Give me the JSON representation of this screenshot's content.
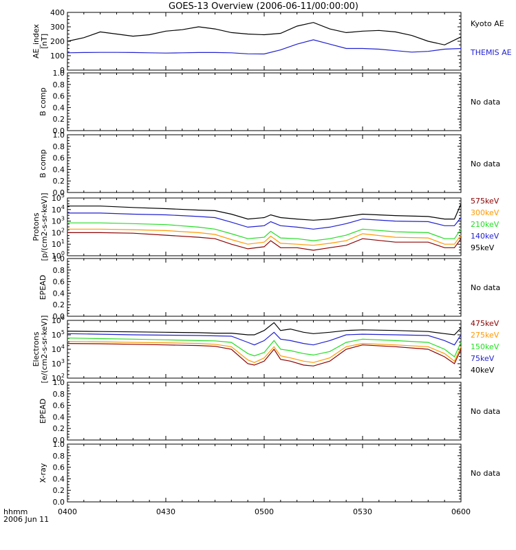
{
  "title": "GOES-13 Overview (2006-06-11/00:00:00)",
  "time_axis": {
    "start": "0400",
    "end": "0600",
    "ticks": [
      "0400",
      "0430",
      "0500",
      "0530",
      "0600"
    ],
    "units_label": "hhmm",
    "date_label": "2006 Jun 11"
  },
  "chart_data": [
    {
      "type": "line",
      "ylabel": "AE_index",
      "ylabel_units": "[nT]",
      "ylim": [
        0,
        400
      ],
      "yticks": [
        "0",
        "100",
        "200",
        "300",
        "400"
      ],
      "x": [
        "04:00",
        "04:05",
        "04:10",
        "04:15",
        "04:20",
        "04:25",
        "04:30",
        "04:35",
        "04:40",
        "04:45",
        "04:50",
        "04:55",
        "05:00",
        "05:05",
        "05:10",
        "05:15",
        "05:20",
        "05:25",
        "05:30",
        "05:35",
        "05:40",
        "05:45",
        "05:50",
        "05:55",
        "06:00"
      ],
      "series": [
        {
          "name": "Kyoto AE",
          "color": "#000000",
          "values": [
            200,
            225,
            265,
            250,
            235,
            245,
            270,
            280,
            300,
            285,
            260,
            250,
            245,
            255,
            305,
            330,
            285,
            260,
            270,
            275,
            265,
            240,
            200,
            175,
            230
          ]
        },
        {
          "name": "THEMIS AE",
          "color": "#1f1fd0",
          "values": [
            120,
            122,
            123,
            123,
            122,
            120,
            118,
            120,
            122,
            122,
            120,
            113,
            112,
            140,
            180,
            210,
            180,
            150,
            150,
            145,
            135,
            125,
            130,
            145,
            150
          ]
        }
      ]
    },
    {
      "type": "line",
      "ylabel": "B comp",
      "ylim": [
        0,
        1
      ],
      "yticks": [
        "0.0",
        "0.2",
        "0.4",
        "0.6",
        "0.8",
        "1.0"
      ],
      "series": [],
      "status": "No data"
    },
    {
      "type": "line",
      "ylabel": "B comp",
      "ylim": [
        0,
        1
      ],
      "yticks": [
        "0.0",
        "0.2",
        "0.4",
        "0.6",
        "0.8",
        "1.0"
      ],
      "series": [],
      "status": "No data"
    },
    {
      "type": "line",
      "ylabel": "Protons",
      "ylabel_units": "[p/(cm2-s-sr-keV)]",
      "yscale": "log",
      "ylim": [
        1,
        100000
      ],
      "yticks": [
        "10^0",
        "10^1",
        "10^2",
        "10^3",
        "10^4",
        "10^5"
      ],
      "x": [
        "04:00",
        "04:10",
        "04:20",
        "04:30",
        "04:40",
        "04:45",
        "04:50",
        "04:55",
        "05:00",
        "05:02",
        "05:05",
        "05:10",
        "05:15",
        "05:20",
        "05:25",
        "05:30",
        "05:40",
        "05:50",
        "05:55",
        "05:58",
        "06:00"
      ],
      "series": [
        {
          "name": "575keV",
          "color": "#8b0000",
          "values": [
            100,
            100,
            90,
            60,
            40,
            30,
            10,
            4,
            6,
            20,
            5,
            5,
            3,
            5,
            8,
            30,
            15,
            15,
            5,
            5,
            30
          ]
        },
        {
          "name": "300keV",
          "color": "#ff9900",
          "values": [
            200,
            200,
            180,
            150,
            100,
            70,
            25,
            10,
            15,
            50,
            12,
            10,
            8,
            12,
            20,
            80,
            40,
            35,
            10,
            10,
            60
          ]
        },
        {
          "name": "210keV",
          "color": "#22dd22",
          "values": [
            700,
            700,
            600,
            500,
            300,
            200,
            80,
            30,
            40,
            130,
            35,
            30,
            20,
            30,
            60,
            200,
            120,
            100,
            30,
            30,
            200
          ]
        },
        {
          "name": "140keV",
          "color": "#1f1fd0",
          "values": [
            5000,
            5000,
            4000,
            3500,
            2500,
            2000,
            800,
            300,
            400,
            900,
            400,
            300,
            200,
            300,
            600,
            1500,
            1000,
            900,
            400,
            400,
            2000
          ]
        },
        {
          "name": "95keV",
          "color": "#000000",
          "values": [
            20000,
            20000,
            15000,
            12000,
            9000,
            8000,
            4000,
            1500,
            2000,
            3500,
            2000,
            1500,
            1200,
            1500,
            2500,
            4000,
            3000,
            2500,
            1500,
            1500,
            30000
          ]
        }
      ]
    },
    {
      "type": "line",
      "ylabel": "EPEAD",
      "ylim": [
        0,
        1
      ],
      "yticks": [
        "0.0",
        "0.2",
        "0.4",
        "0.6",
        "0.8",
        "1.0"
      ],
      "series": [],
      "status": "No data"
    },
    {
      "type": "line",
      "ylabel": "Electrons",
      "ylabel_units": "[e/(cm2-s-sr-keV)]",
      "yscale": "log",
      "ylim": [
        100,
        1000000
      ],
      "yticks": [
        "10^2",
        "10^3",
        "10^4",
        "10^5",
        "10^6"
      ],
      "x": [
        "04:00",
        "04:10",
        "04:20",
        "04:30",
        "04:40",
        "04:45",
        "04:50",
        "04:55",
        "04:57",
        "05:00",
        "05:03",
        "05:05",
        "05:08",
        "05:12",
        "05:15",
        "05:20",
        "05:25",
        "05:30",
        "05:40",
        "05:50",
        "05:55",
        "05:58",
        "06:00"
      ],
      "series": [
        {
          "name": "475keV",
          "color": "#8b0000",
          "values": [
            25000,
            24000,
            22000,
            20000,
            18000,
            16000,
            10000,
            1000,
            800,
            1500,
            10000,
            2000,
            1500,
            800,
            700,
            1500,
            10000,
            20000,
            15000,
            10000,
            3000,
            1000,
            10000
          ]
        },
        {
          "name": "275keV",
          "color": "#ff9900",
          "values": [
            35000,
            33000,
            30000,
            28000,
            25000,
            22000,
            15000,
            1800,
            1200,
            2500,
            15000,
            3500,
            2500,
            1500,
            1200,
            2500,
            15000,
            25000,
            20000,
            15000,
            5000,
            1500,
            15000
          ]
        },
        {
          "name": "150keV",
          "color": "#22dd22",
          "values": [
            60000,
            55000,
            50000,
            45000,
            40000,
            38000,
            30000,
            5000,
            3500,
            6000,
            40000,
            10000,
            8000,
            5000,
            4000,
            7000,
            30000,
            50000,
            40000,
            30000,
            10000,
            3000,
            30000
          ]
        },
        {
          "name": "75keV",
          "color": "#1f1fd0",
          "values": [
            120000,
            110000,
            100000,
            95000,
            90000,
            85000,
            80000,
            30000,
            20000,
            40000,
            150000,
            50000,
            40000,
            25000,
            20000,
            40000,
            100000,
            110000,
            100000,
            90000,
            40000,
            20000,
            100000
          ]
        },
        {
          "name": "40keV",
          "color": "#000000",
          "values": [
            180000,
            170000,
            160000,
            150000,
            140000,
            130000,
            130000,
            100000,
            100000,
            200000,
            700000,
            200000,
            250000,
            150000,
            120000,
            150000,
            200000,
            220000,
            200000,
            170000,
            120000,
            100000,
            300000
          ]
        }
      ]
    },
    {
      "type": "line",
      "ylabel": "EPEAD",
      "ylim": [
        0,
        1
      ],
      "yticks": [
        "0.0",
        "0.2",
        "0.4",
        "0.6",
        "0.8",
        "1.0"
      ],
      "series": [],
      "status": "No data"
    },
    {
      "type": "line",
      "ylabel": "X-ray",
      "ylim": [
        0,
        1
      ],
      "yticks": [
        "0.0",
        "0.2",
        "0.4",
        "0.6",
        "0.8",
        "1.0"
      ],
      "series": [],
      "status": "No data"
    }
  ]
}
